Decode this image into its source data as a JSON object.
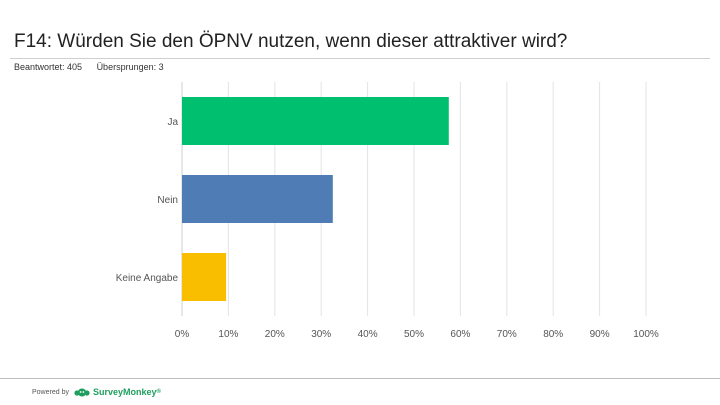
{
  "header": {
    "title": "F14: Würden Sie den ÖPNV nutzen, wenn dieser attraktiver wird?",
    "answered": "Beantwortet: 405",
    "skipped": "Übersprungen: 3"
  },
  "footer": {
    "powered_by": "Powered by",
    "brand": "SurveyMonkey",
    "brand_mark": "®"
  },
  "chart_data": {
    "type": "bar",
    "orientation": "horizontal",
    "title": "F14: Würden Sie den ÖPNV nutzen, wenn dieser attraktiver wird?",
    "categories": [
      "Ja",
      "Nein",
      "Keine Angabe"
    ],
    "values": [
      57.5,
      32.5,
      9.5
    ],
    "unit": "%",
    "colors": [
      "#00bf6f",
      "#507cb6",
      "#f9be00"
    ],
    "xlim": [
      0,
      100
    ],
    "ticks": [
      "0%",
      "10%",
      "20%",
      "30%",
      "40%",
      "50%",
      "60%",
      "70%",
      "80%",
      "90%",
      "100%"
    ],
    "grid": true,
    "xlabel": "",
    "ylabel": ""
  }
}
